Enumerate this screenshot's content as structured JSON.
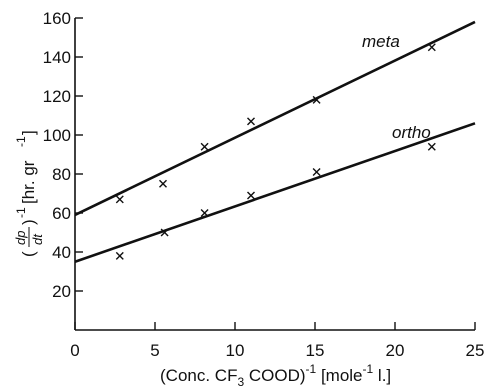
{
  "chart_data": {
    "type": "scatter",
    "title": "",
    "xlabel": {
      "pre": "(Conc. CF",
      "sub": "3",
      "mid": " COOD)",
      "sup": "-1",
      "unit": " [mole",
      "unit_sup": "-1",
      "unit_end": " l.]"
    },
    "ylabel": {
      "frac_num": "dp",
      "frac_den": "dt",
      "sup": "-1",
      "unit": "[hr. gr",
      "unit_sup": "-1",
      "unit_end": "]"
    },
    "xlim": [
      0,
      25
    ],
    "ylim": [
      0,
      160
    ],
    "x_ticks": [
      0,
      5,
      10,
      15,
      20,
      25
    ],
    "y_ticks": [
      20,
      40,
      60,
      80,
      100,
      120,
      140,
      160
    ],
    "grid": false,
    "series": [
      {
        "name": "meta",
        "marker": "x",
        "points": [
          [
            2.8,
            67
          ],
          [
            5.5,
            75
          ],
          [
            8.1,
            94
          ],
          [
            11.0,
            107
          ],
          [
            15.1,
            118
          ],
          [
            22.3,
            145
          ]
        ],
        "fit_line": [
          [
            0,
            59
          ],
          [
            25,
            158
          ]
        ]
      },
      {
        "name": "ortho",
        "marker": "x",
        "points": [
          [
            2.8,
            38
          ],
          [
            5.6,
            50
          ],
          [
            8.1,
            60
          ],
          [
            11.0,
            69
          ],
          [
            15.1,
            81
          ],
          [
            22.3,
            94
          ]
        ],
        "fit_line": [
          [
            0,
            35
          ],
          [
            25,
            106
          ]
        ]
      }
    ]
  }
}
